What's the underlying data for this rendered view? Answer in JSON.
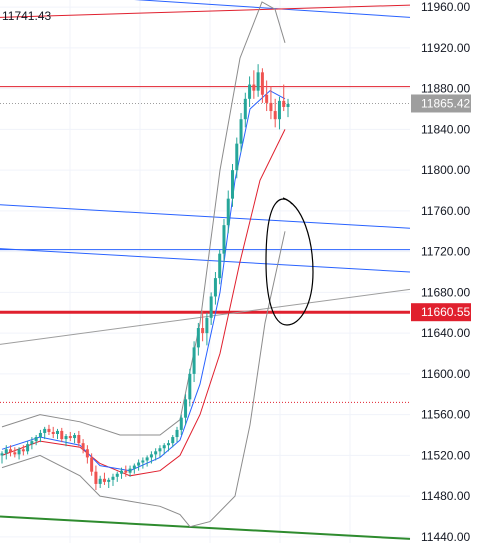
{
  "header": {
    "corner_value": "11741.43"
  },
  "chart_data": {
    "type": "line",
    "title": "",
    "y_axis": {
      "ticks": [
        11960,
        11920,
        11880,
        11840,
        11800,
        11760,
        11720,
        11680,
        11640,
        11600,
        11560,
        11520,
        11480,
        11440
      ],
      "tick_labels": [
        "11960.00",
        "11920.00",
        "11880.00",
        "11840.00",
        "11800.00",
        "11760.00",
        "11720.00",
        "11680.00",
        "11640.00",
        "11600.00",
        "11560.00",
        "11520.00",
        "11480.00",
        "11440.00"
      ],
      "range": [
        11434,
        11967
      ],
      "position": "right"
    },
    "price_badges": [
      {
        "value": 11865.42,
        "label": "11865.42",
        "color": "#9e9e9e"
      },
      {
        "value": 11660.55,
        "label": "11660.55",
        "color": "#e0202e"
      }
    ],
    "horizontal_lines": [
      {
        "value": 11882,
        "color": "#e0202e",
        "style": "solid",
        "width": 1
      },
      {
        "value": 11865.42,
        "color": "#9e9e9e",
        "style": "dotted",
        "width": 1
      },
      {
        "value": 11660.55,
        "color": "#e0202e",
        "style": "solid",
        "width": 3
      },
      {
        "value": 11722,
        "color": "#2962ff",
        "style": "solid",
        "width": 1
      },
      {
        "value": 11572,
        "color": "#e0202e",
        "style": "dotted",
        "width": 1
      }
    ],
    "trendlines": [
      {
        "color": "#2962ff",
        "from": [
          0,
          11976
        ],
        "to": [
          410,
          11950
        ]
      },
      {
        "color": "#e0202e",
        "from": [
          0,
          11950
        ],
        "to": [
          410,
          11962
        ]
      },
      {
        "color": "#2962ff",
        "from": [
          0,
          11766
        ],
        "to": [
          410,
          11743
        ]
      },
      {
        "color": "#2962ff",
        "from": [
          0,
          11723
        ],
        "to": [
          410,
          11700
        ]
      },
      {
        "color": "#9e9e9e",
        "from": [
          0,
          11629
        ],
        "to": [
          410,
          11683
        ]
      },
      {
        "color": "#2e8b2e",
        "from": [
          0,
          11460
        ],
        "to": [
          410,
          11438
        ]
      }
    ],
    "candles": [
      [
        11520,
        11524,
        11512,
        11522
      ],
      [
        11522,
        11530,
        11516,
        11526
      ],
      [
        11526,
        11530,
        11519,
        11523
      ],
      [
        11523,
        11528,
        11518,
        11521
      ],
      [
        11521,
        11528,
        11516,
        11526
      ],
      [
        11526,
        11530,
        11520,
        11524
      ],
      [
        11524,
        11534,
        11521,
        11531
      ],
      [
        11531,
        11538,
        11526,
        11534
      ],
      [
        11534,
        11540,
        11530,
        11538
      ],
      [
        11538,
        11545,
        11533,
        11542
      ],
      [
        11542,
        11548,
        11536,
        11546
      ],
      [
        11546,
        11550,
        11540,
        11543
      ],
      [
        11543,
        11548,
        11537,
        11541
      ],
      [
        11541,
        11546,
        11536,
        11544
      ],
      [
        11544,
        11547,
        11533,
        11536
      ],
      [
        11536,
        11541,
        11529,
        11539
      ],
      [
        11539,
        11543,
        11534,
        11537
      ],
      [
        11537,
        11542,
        11532,
        11540
      ],
      [
        11540,
        11544,
        11529,
        11532
      ],
      [
        11532,
        11536,
        11522,
        11526
      ],
      [
        11526,
        11530,
        11512,
        11518
      ],
      [
        11518,
        11522,
        11500,
        11504
      ],
      [
        11504,
        11510,
        11486,
        11492
      ],
      [
        11492,
        11500,
        11488,
        11497
      ],
      [
        11497,
        11503,
        11491,
        11494
      ],
      [
        11494,
        11498,
        11488,
        11496
      ],
      [
        11496,
        11502,
        11490,
        11499
      ],
      [
        11499,
        11504,
        11494,
        11502
      ],
      [
        11502,
        11508,
        11497,
        11505
      ],
      [
        11505,
        11510,
        11499,
        11503
      ],
      [
        11503,
        11510,
        11499,
        11507
      ],
      [
        11507,
        11512,
        11502,
        11510
      ],
      [
        11510,
        11516,
        11505,
        11513
      ],
      [
        11513,
        11518,
        11507,
        11515
      ],
      [
        11515,
        11520,
        11509,
        11518
      ],
      [
        11518,
        11524,
        11512,
        11521
      ],
      [
        11521,
        11527,
        11515,
        11524
      ],
      [
        11524,
        11530,
        11518,
        11527
      ],
      [
        11527,
        11532,
        11521,
        11530
      ],
      [
        11530,
        11535,
        11524,
        11532
      ],
      [
        11532,
        11540,
        11528,
        11538
      ],
      [
        11538,
        11548,
        11533,
        11545
      ],
      [
        11545,
        11560,
        11540,
        11557
      ],
      [
        11557,
        11580,
        11550,
        11575
      ],
      [
        11575,
        11605,
        11568,
        11600
      ],
      [
        11600,
        11632,
        11592,
        11626
      ],
      [
        11626,
        11650,
        11618,
        11645
      ],
      [
        11645,
        11662,
        11632,
        11640
      ],
      [
        11640,
        11660,
        11628,
        11655
      ],
      [
        11655,
        11680,
        11648,
        11676
      ],
      [
        11676,
        11700,
        11668,
        11694
      ],
      [
        11694,
        11722,
        11688,
        11718
      ],
      [
        11718,
        11752,
        11710,
        11746
      ],
      [
        11746,
        11780,
        11738,
        11772
      ],
      [
        11772,
        11806,
        11764,
        11800
      ],
      [
        11800,
        11832,
        11792,
        11826
      ],
      [
        11826,
        11856,
        11818,
        11850
      ],
      [
        11850,
        11876,
        11842,
        11870
      ],
      [
        11870,
        11892,
        11862,
        11884
      ],
      [
        11884,
        11898,
        11870,
        11878
      ],
      [
        11878,
        11904,
        11872,
        11896
      ],
      [
        11896,
        11900,
        11866,
        11874
      ],
      [
        11874,
        11888,
        11858,
        11866
      ],
      [
        11866,
        11882,
        11850,
        11858
      ],
      [
        11858,
        11870,
        11842,
        11850
      ],
      [
        11850,
        11872,
        11840,
        11868
      ],
      [
        11868,
        11884,
        11858,
        11862
      ],
      [
        11862,
        11870,
        11852,
        11865
      ]
    ],
    "candle_x_range": [
      2,
      288
    ],
    "colors": {
      "up": "#26a69a",
      "down": "#ef5350",
      "bb_band": "#8c8c8c",
      "bb_basis": "#2962ff",
      "ma": "#e0202e",
      "annotation": "#000000"
    },
    "bollinger_upper": [
      [
        2,
        11548
      ],
      [
        40,
        11560
      ],
      [
        80,
        11553
      ],
      [
        120,
        11540
      ],
      [
        160,
        11540
      ],
      [
        180,
        11555
      ],
      [
        200,
        11650
      ],
      [
        220,
        11800
      ],
      [
        240,
        11910
      ],
      [
        262,
        11965
      ],
      [
        275,
        11958
      ],
      [
        285,
        11925
      ]
    ],
    "bollinger_lower": [
      [
        2,
        11508
      ],
      [
        40,
        11520
      ],
      [
        80,
        11500
      ],
      [
        100,
        11480
      ],
      [
        130,
        11475
      ],
      [
        160,
        11470
      ],
      [
        180,
        11462
      ],
      [
        190,
        11450
      ],
      [
        210,
        11455
      ],
      [
        235,
        11480
      ],
      [
        250,
        11550
      ],
      [
        265,
        11650
      ],
      [
        285,
        11740
      ]
    ],
    "bollinger_basis": [
      [
        2,
        11526
      ],
      [
        40,
        11538
      ],
      [
        80,
        11530
      ],
      [
        100,
        11510
      ],
      [
        130,
        11505
      ],
      [
        160,
        11518
      ],
      [
        180,
        11535
      ],
      [
        200,
        11590
      ],
      [
        220,
        11680
      ],
      [
        235,
        11790
      ],
      [
        250,
        11860
      ],
      [
        270,
        11878
      ],
      [
        285,
        11870
      ]
    ],
    "moving_average": [
      [
        2,
        11520
      ],
      [
        40,
        11534
      ],
      [
        80,
        11528
      ],
      [
        100,
        11512
      ],
      [
        130,
        11500
      ],
      [
        160,
        11505
      ],
      [
        180,
        11520
      ],
      [
        200,
        11560
      ],
      [
        220,
        11620
      ],
      [
        240,
        11710
      ],
      [
        260,
        11790
      ],
      [
        285,
        11840
      ]
    ]
  }
}
